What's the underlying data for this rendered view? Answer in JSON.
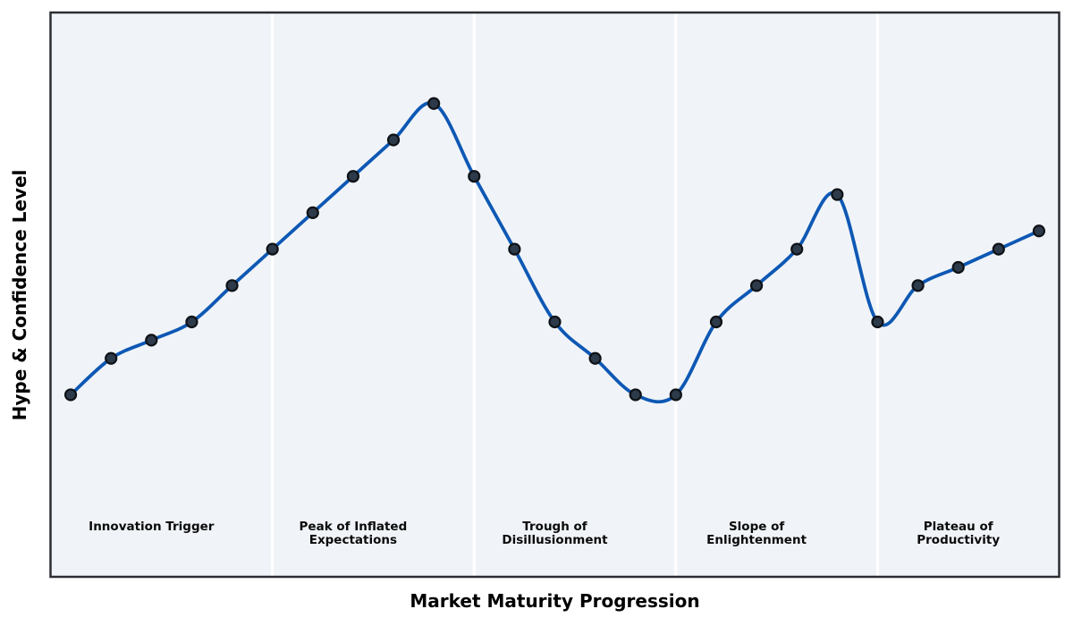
{
  "chart_data": {
    "type": "line",
    "title": "",
    "xlabel": "Market Maturity Progression",
    "ylabel": "Hype & Confidence Level",
    "x": [
      0,
      1,
      2,
      3,
      4,
      5,
      6,
      7,
      8,
      9,
      10,
      11,
      12,
      13,
      14,
      15,
      16,
      17,
      18,
      19,
      20,
      21,
      22,
      23,
      24
    ],
    "y": [
      5,
      6,
      6.5,
      7,
      8,
      9,
      10,
      11,
      12,
      13,
      11,
      9,
      7,
      6,
      5,
      5,
      7,
      8,
      9,
      10.5,
      7,
      8,
      8.5,
      9,
      9.5
    ],
    "xlim": [
      -0.5,
      24.5
    ],
    "ylim": [
      0,
      15.5
    ],
    "grid": false,
    "legend": null,
    "smooth": true,
    "marker": "circle",
    "axis_ticks": "none",
    "phase_boundaries_x": [
      5,
      10,
      15,
      20
    ],
    "phase_label_y": 1.55,
    "phases": [
      {
        "label": "Innovation Trigger",
        "center_x": 2
      },
      {
        "label": "Peak of Inflated\nExpectations",
        "center_x": 7
      },
      {
        "label": "Trough of\nDisillusionment",
        "center_x": 12
      },
      {
        "label": "Slope of\nEnlightenment",
        "center_x": 17
      },
      {
        "label": "Plateau of\nProductivity",
        "center_x": 22
      }
    ]
  },
  "colors": {
    "figure_background": "#ffffff",
    "plot_background": "#f0f4f8",
    "plot_border": "#2b2d32",
    "phase_divider": "#ffffff",
    "curve": "#0e58b4",
    "marker_fill": "#2d3a4a",
    "marker_edge": "#0e1216",
    "label_text": "#000000"
  }
}
